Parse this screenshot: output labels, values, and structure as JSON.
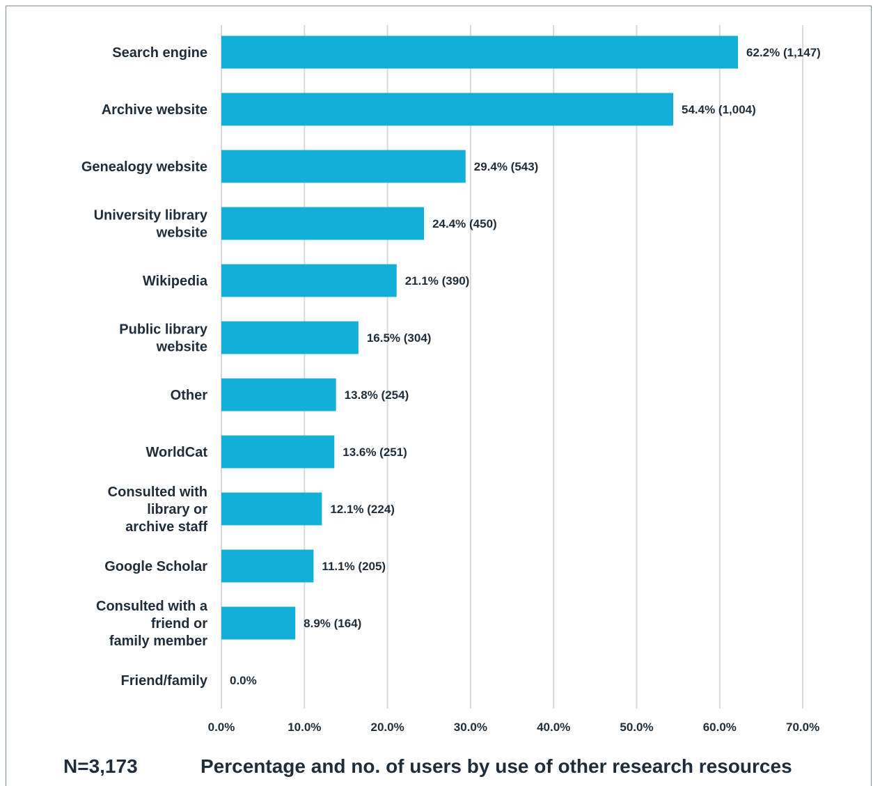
{
  "chart_data": {
    "type": "bar",
    "orientation": "horizontal",
    "categories": [
      "Search engine",
      "Archive website",
      "Genealogy website",
      "University library website",
      "Wikipedia",
      "Public library website",
      "Other",
      "WorldCat",
      "Consulted with library or archive staff",
      "Google Scholar",
      "Consulted with a friend or family member",
      "Friend/family"
    ],
    "category_lines": [
      [
        "Search engine"
      ],
      [
        "Archive website"
      ],
      [
        "Genealogy website"
      ],
      [
        "University library",
        "website"
      ],
      [
        "Wikipedia"
      ],
      [
        "Public library",
        "website"
      ],
      [
        "Other"
      ],
      [
        "WorldCat"
      ],
      [
        "Consulted with",
        "library or",
        "archive staff"
      ],
      [
        "Google Scholar"
      ],
      [
        "Consulted with a",
        "friend or",
        "family member"
      ],
      [
        "Friend/family"
      ]
    ],
    "values": [
      62.2,
      54.4,
      29.4,
      24.4,
      21.1,
      16.5,
      13.8,
      13.6,
      12.1,
      11.1,
      8.9,
      0.0
    ],
    "counts": [
      1147,
      1004,
      543,
      450,
      390,
      304,
      254,
      251,
      224,
      205,
      164,
      0
    ],
    "data_labels": [
      "62.2% (1,147)",
      "54.4% (1,004)",
      "29.4% (543)",
      "24.4% (450)",
      "21.1% (390)",
      "16.5% (304)",
      "13.8% (254)",
      "13.6% (251)",
      "12.1% (224)",
      "11.1% (205)",
      "8.9% (164)",
      "0.0%"
    ],
    "xlim": [
      0,
      70
    ],
    "xticks": [
      0,
      10,
      20,
      30,
      40,
      50,
      60,
      70
    ],
    "xtick_labels": [
      "0.0%",
      "10.0%",
      "20.0%",
      "30.0%",
      "40.0%",
      "50.0%",
      "60.0%",
      "70.0%"
    ],
    "grid": "vertical",
    "bar_color": "#12afd8",
    "grid_color": "#d9d9d9",
    "text_color": "#1f2d3a"
  },
  "footer": {
    "sample_size": "N=3,173",
    "title": "Percentage and no. of users by use of other research resources"
  }
}
